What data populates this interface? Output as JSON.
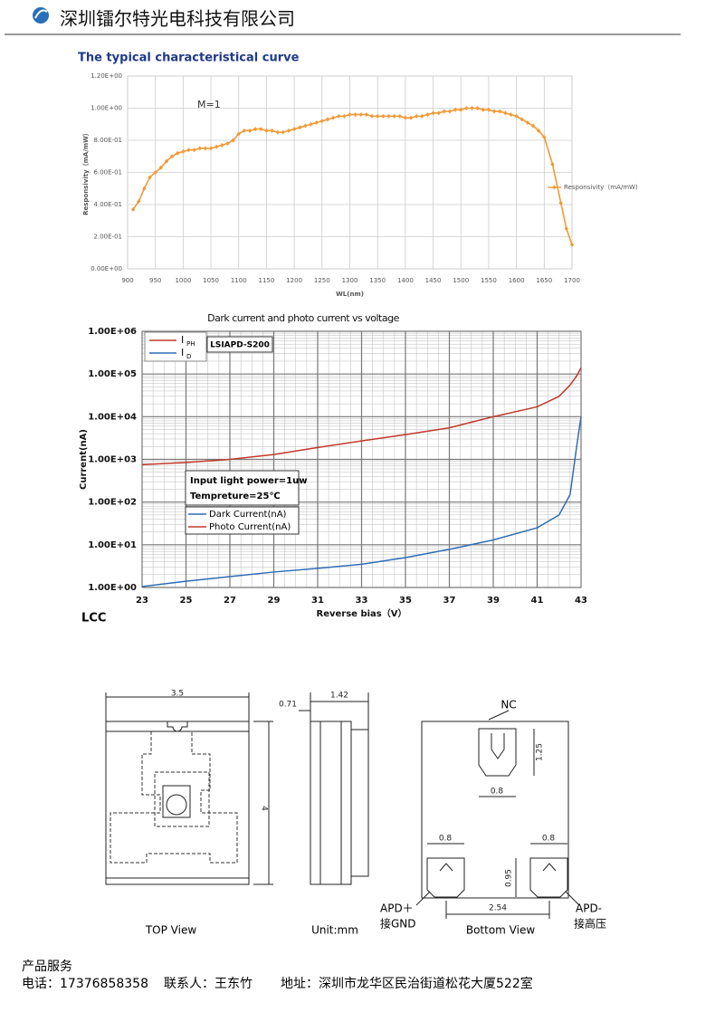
{
  "header": {
    "company": "深圳镭尔特光电科技有限公司"
  },
  "section_title": "The typical characteristical curve",
  "chart_data": [
    {
      "type": "line",
      "ylabel": "Responsivity（mA/mW）",
      "xlabel": "WL(nm)",
      "annotation": "M=1",
      "xlim": [
        900,
        1700
      ],
      "xticks": [
        900,
        950,
        1000,
        1050,
        1100,
        1150,
        1200,
        1250,
        1300,
        1350,
        1400,
        1450,
        1500,
        1550,
        1600,
        1650,
        1700
      ],
      "ylim": [
        0,
        1.2
      ],
      "yticks": [
        {
          "value": 0,
          "label": "0.00E+00"
        },
        {
          "value": 0.2,
          "label": "2.00E-01"
        },
        {
          "value": 0.4,
          "label": "4.00E-01"
        },
        {
          "value": 0.6,
          "label": "6.00E-01"
        },
        {
          "value": 0.8,
          "label": "8.00E-01"
        },
        {
          "value": 1.0,
          "label": "1.00E+00"
        },
        {
          "value": 1.2,
          "label": "1.20E+00"
        }
      ],
      "grid": true,
      "legend": "right",
      "x": [
        910,
        920,
        930,
        940,
        950,
        960,
        970,
        980,
        990,
        1000,
        1010,
        1020,
        1030,
        1040,
        1050,
        1060,
        1070,
        1080,
        1090,
        1100,
        1110,
        1120,
        1130,
        1140,
        1150,
        1160,
        1170,
        1180,
        1190,
        1200,
        1210,
        1220,
        1230,
        1240,
        1250,
        1260,
        1270,
        1280,
        1290,
        1300,
        1310,
        1320,
        1330,
        1340,
        1350,
        1360,
        1370,
        1380,
        1390,
        1400,
        1410,
        1420,
        1430,
        1440,
        1450,
        1460,
        1470,
        1480,
        1490,
        1500,
        1510,
        1520,
        1530,
        1540,
        1550,
        1560,
        1570,
        1580,
        1590,
        1600,
        1610,
        1620,
        1630,
        1640,
        1650,
        1665,
        1680,
        1690,
        1700
      ],
      "series": [
        {
          "name": "Responsivity（mA/mW)",
          "color": "#f29a36",
          "values": [
            0.37,
            0.42,
            0.5,
            0.57,
            0.6,
            0.63,
            0.67,
            0.7,
            0.72,
            0.73,
            0.74,
            0.74,
            0.75,
            0.75,
            0.75,
            0.76,
            0.77,
            0.78,
            0.8,
            0.84,
            0.86,
            0.86,
            0.87,
            0.87,
            0.86,
            0.86,
            0.85,
            0.85,
            0.86,
            0.87,
            0.88,
            0.89,
            0.9,
            0.91,
            0.92,
            0.93,
            0.94,
            0.95,
            0.95,
            0.96,
            0.96,
            0.96,
            0.96,
            0.95,
            0.95,
            0.95,
            0.95,
            0.95,
            0.95,
            0.94,
            0.94,
            0.95,
            0.95,
            0.96,
            0.97,
            0.97,
            0.98,
            0.98,
            0.99,
            0.99,
            1.0,
            1.0,
            1.0,
            0.99,
            0.99,
            0.98,
            0.98,
            0.97,
            0.96,
            0.95,
            0.93,
            0.91,
            0.89,
            0.86,
            0.82,
            0.65,
            0.41,
            0.25,
            0.15
          ]
        }
      ]
    },
    {
      "type": "line",
      "title": "Dark current and photo current vs voltage",
      "ylabel": "Current(nA)",
      "xlabel": "Reverse bias（V）",
      "log_y": true,
      "grid": true,
      "xlim": [
        23,
        43
      ],
      "xticks": [
        23,
        25,
        27,
        29,
        31,
        33,
        35,
        37,
        39,
        41,
        43
      ],
      "ylim": [
        1,
        1000000
      ],
      "yticks": [
        {
          "value": 1,
          "label": "1.00E+00"
        },
        {
          "value": 10,
          "label": "1.00E+01"
        },
        {
          "value": 100,
          "label": "1.00E+02"
        },
        {
          "value": 1000,
          "label": "1.00E+03"
        },
        {
          "value": 10000,
          "label": "1.00E+04"
        },
        {
          "value": 100000,
          "label": "1.00E+05"
        },
        {
          "value": 1000000,
          "label": "1.00E+06"
        }
      ],
      "x": [
        23,
        25,
        27,
        29,
        31,
        33,
        35,
        37,
        39,
        41,
        42,
        42.5,
        42.8,
        43
      ],
      "series": [
        {
          "name": "Photo Current(nA)",
          "color": "#c0392b",
          "values": [
            750,
            850,
            1000,
            1300,
            1900,
            2700,
            3800,
            5500,
            10000,
            17000,
            30000,
            55000,
            90000,
            140000
          ]
        },
        {
          "name": "Dark Current(nA)",
          "color": "#2f6db5",
          "values": [
            1.05,
            1.4,
            1.8,
            2.3,
            2.8,
            3.5,
            5,
            7.8,
            13,
            25,
            50,
            150,
            2000,
            10000
          ]
        }
      ],
      "legend_symbols": [
        {
          "text": "I",
          "subscript": "PH"
        },
        {
          "text": "I",
          "subscript": "D"
        }
      ],
      "model": "LSIAPD-S200",
      "conditions": [
        "Input light power=1uw",
        "Tempreture=25℃"
      ],
      "package": "LCC"
    }
  ],
  "drawing": {
    "dims": {
      "width": "3.5",
      "thickness": "1.42",
      "offset": "0.71",
      "height": "4",
      "notch": "1.25",
      "notch_width": "0.8",
      "pad_left": "0.8",
      "pad_right": "0.8",
      "pad_height": "0.95",
      "pitch": "2.54"
    },
    "labels": {
      "nc": "NC",
      "apd_plus": "APD＋",
      "gnd": "接GND",
      "apd_minus": "APD-",
      "hv": "接高压"
    },
    "views": {
      "top": "TOP View",
      "unit": "Unit:mm",
      "bottom": "Bottom View"
    }
  },
  "footer": {
    "heading": "产品服务",
    "phone": "电话：17376858358",
    "contact": "联系人：王东竹",
    "address": "地址：深圳市龙华区民治街道松花大厦522室"
  }
}
